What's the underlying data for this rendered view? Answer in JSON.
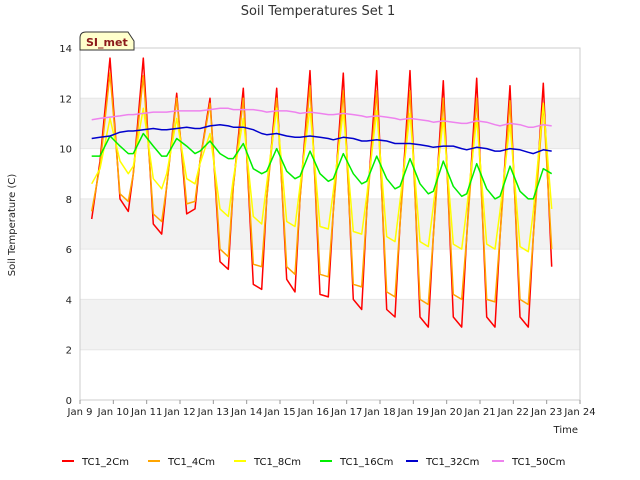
{
  "chart_data": {
    "type": "line",
    "title": "Soil Temperatures Set 1",
    "xlabel": "Time",
    "ylabel": "Soil Temperature (C)",
    "badge": "SI_met",
    "ylim": [
      0,
      14
    ],
    "yticks": [
      0,
      2,
      4,
      6,
      8,
      10,
      12,
      14
    ],
    "xlim": [
      "Jan 9",
      "Jan 24"
    ],
    "xticks": [
      "Jan 9",
      "Jan 10",
      "Jan 11",
      "Jan 12",
      "Jan 13",
      "Jan 14",
      "Jan 15",
      "Jan 16",
      "Jan 17",
      "Jan 18",
      "Jan 19",
      "Jan 20",
      "Jan 21",
      "Jan 22",
      "Jan 23",
      "Jan 24"
    ],
    "grid": "horizontal bands",
    "legend_position": "bottom",
    "x": [
      9.35,
      9.6,
      9.9,
      10.2,
      10.45,
      10.6,
      10.9,
      11.2,
      11.45,
      11.6,
      11.9,
      12.2,
      12.45,
      12.6,
      12.9,
      13.2,
      13.45,
      13.6,
      13.9,
      14.2,
      14.45,
      14.6,
      14.9,
      15.2,
      15.45,
      15.6,
      15.9,
      16.2,
      16.45,
      16.6,
      16.9,
      17.2,
      17.45,
      17.6,
      17.9,
      18.2,
      18.45,
      18.6,
      18.9,
      19.2,
      19.45,
      19.6,
      19.9,
      20.2,
      20.45,
      20.6,
      20.9,
      21.2,
      21.45,
      21.6,
      21.9,
      22.2,
      22.45,
      22.6,
      22.9,
      23.15
    ],
    "series": [
      {
        "name": "TC1_2Cm",
        "color": "#ff0000",
        "values": [
          7.2,
          9.5,
          13.6,
          8.0,
          7.5,
          9.0,
          13.6,
          7.0,
          6.6,
          8.5,
          12.2,
          7.4,
          7.6,
          9.5,
          12.0,
          5.5,
          5.2,
          8.5,
          12.4,
          4.6,
          4.4,
          8.0,
          12.4,
          4.8,
          4.3,
          8.0,
          13.1,
          4.2,
          4.1,
          7.5,
          13.0,
          4.0,
          3.6,
          7.5,
          13.1,
          3.6,
          3.3,
          7.0,
          13.1,
          3.3,
          2.9,
          6.5,
          12.7,
          3.3,
          2.9,
          6.5,
          12.8,
          3.3,
          2.9,
          6.5,
          12.5,
          3.3,
          2.9,
          6.5,
          12.6,
          5.3
        ]
      },
      {
        "name": "TC1_4Cm",
        "color": "#ffa500",
        "values": [
          7.5,
          9.3,
          13.0,
          8.2,
          7.9,
          9.0,
          12.9,
          7.4,
          7.1,
          8.5,
          12.0,
          7.8,
          7.9,
          9.5,
          11.8,
          6.0,
          5.7,
          8.5,
          12.0,
          5.4,
          5.3,
          8.0,
          12.0,
          5.3,
          5.0,
          8.0,
          12.5,
          5.0,
          4.9,
          7.5,
          12.3,
          4.6,
          4.5,
          7.5,
          12.3,
          4.3,
          4.1,
          7.0,
          12.3,
          4.0,
          3.8,
          6.5,
          12.0,
          4.2,
          4.0,
          6.5,
          12.0,
          4.0,
          3.9,
          6.5,
          11.9,
          4.0,
          3.8,
          6.5,
          11.8,
          6.0
        ]
      },
      {
        "name": "TC1_8Cm",
        "color": "#ffff00",
        "values": [
          8.6,
          9.2,
          11.2,
          9.5,
          9.0,
          9.3,
          11.6,
          8.8,
          8.4,
          9.0,
          11.2,
          8.8,
          8.6,
          9.4,
          10.6,
          7.6,
          7.3,
          8.8,
          11.2,
          7.3,
          7.0,
          8.6,
          11.6,
          7.1,
          6.9,
          8.5,
          11.6,
          6.9,
          6.8,
          8.3,
          11.5,
          6.7,
          6.6,
          8.1,
          11.5,
          6.5,
          6.3,
          7.9,
          11.4,
          6.3,
          6.1,
          7.7,
          11.2,
          6.2,
          6.0,
          7.6,
          11.2,
          6.2,
          6.0,
          7.5,
          11.0,
          6.1,
          5.9,
          7.5,
          11.8,
          7.6
        ]
      },
      {
        "name": "TC1_16Cm",
        "color": "#00ee00",
        "values": [
          9.7,
          9.7,
          10.5,
          10.1,
          9.8,
          9.8,
          10.6,
          10.1,
          9.7,
          9.7,
          10.4,
          10.1,
          9.8,
          9.9,
          10.3,
          9.8,
          9.6,
          9.6,
          10.2,
          9.2,
          9.0,
          9.1,
          10.0,
          9.1,
          8.8,
          8.9,
          9.9,
          9.0,
          8.7,
          8.8,
          9.8,
          9.0,
          8.6,
          8.7,
          9.7,
          8.8,
          8.4,
          8.5,
          9.6,
          8.6,
          8.2,
          8.3,
          9.5,
          8.5,
          8.1,
          8.2,
          9.4,
          8.4,
          8.0,
          8.1,
          9.3,
          8.3,
          8.0,
          8.0,
          9.2,
          9.0
        ]
      },
      {
        "name": "TC1_32Cm",
        "color": "#0000cc",
        "values": [
          10.4,
          10.45,
          10.5,
          10.65,
          10.7,
          10.7,
          10.75,
          10.8,
          10.75,
          10.75,
          10.8,
          10.85,
          10.8,
          10.8,
          10.9,
          10.95,
          10.9,
          10.85,
          10.85,
          10.75,
          10.6,
          10.55,
          10.6,
          10.5,
          10.45,
          10.45,
          10.5,
          10.45,
          10.4,
          10.35,
          10.45,
          10.4,
          10.3,
          10.3,
          10.35,
          10.3,
          10.2,
          10.2,
          10.2,
          10.15,
          10.1,
          10.05,
          10.1,
          10.1,
          10.0,
          9.95,
          10.05,
          10.0,
          9.9,
          9.9,
          10.0,
          9.95,
          9.85,
          9.8,
          9.95,
          9.9
        ]
      },
      {
        "name": "TC1_50Cm",
        "color": "#ee82ee",
        "values": [
          11.15,
          11.2,
          11.25,
          11.3,
          11.35,
          11.35,
          11.4,
          11.45,
          11.45,
          11.45,
          11.5,
          11.5,
          11.5,
          11.5,
          11.55,
          11.6,
          11.6,
          11.55,
          11.55,
          11.55,
          11.5,
          11.45,
          11.5,
          11.5,
          11.45,
          11.4,
          11.45,
          11.4,
          11.35,
          11.35,
          11.4,
          11.35,
          11.3,
          11.25,
          11.3,
          11.25,
          11.2,
          11.15,
          11.2,
          11.15,
          11.1,
          11.05,
          11.1,
          11.05,
          11.0,
          11.0,
          11.1,
          11.05,
          10.95,
          10.9,
          11.0,
          10.95,
          10.85,
          10.85,
          10.95,
          10.9
        ]
      }
    ]
  }
}
